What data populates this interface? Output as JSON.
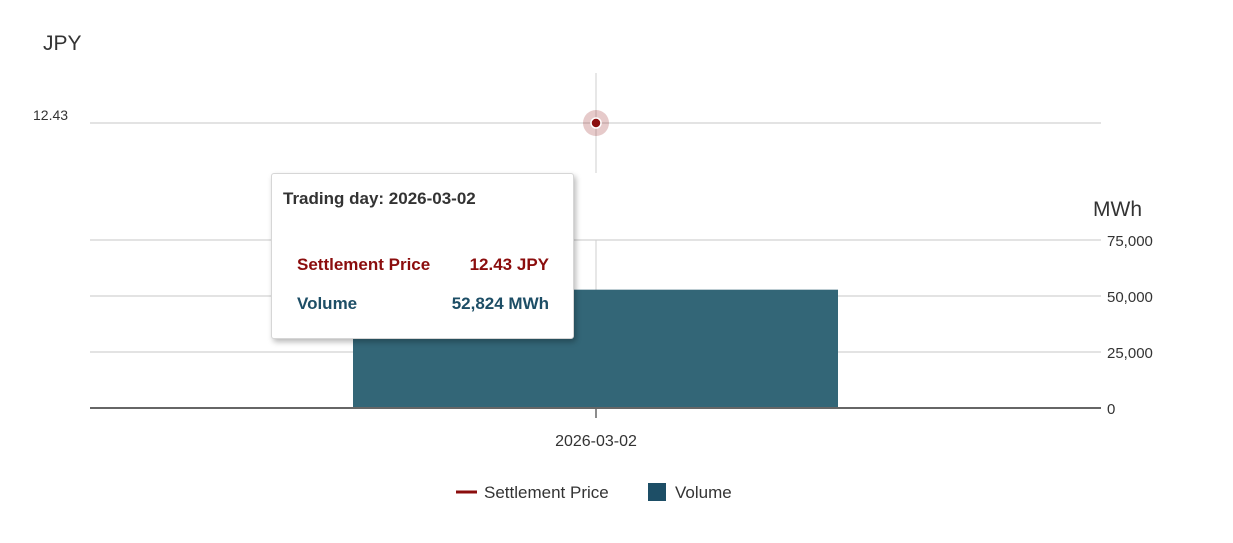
{
  "chart_data": {
    "type": "bar",
    "categories": [
      "2026-03-02"
    ],
    "series": [
      {
        "name": "Settlement Price",
        "type": "line",
        "axis": "left",
        "values": [
          12.43
        ],
        "color": "#8b0d0d"
      },
      {
        "name": "Volume",
        "type": "bar",
        "axis": "right",
        "values": [
          52824
        ],
        "color": "#336677"
      }
    ],
    "left_axis": {
      "label": "JPY",
      "ticks": [
        "12.43"
      ]
    },
    "right_axis": {
      "label": "MWh",
      "ticks": [
        "0",
        "25,000",
        "50,000",
        "75,000"
      ],
      "ylim": [
        0,
        75000
      ]
    },
    "grid": true,
    "legend_position": "bottom-center",
    "legend": [
      {
        "label": "Settlement Price",
        "marker": "line",
        "color": "#8b0d0d"
      },
      {
        "label": "Volume",
        "marker": "square",
        "color": "#1d4e66"
      }
    ],
    "tooltip": {
      "title": "Trading day: 2026-03-02",
      "rows": [
        {
          "label": "Settlement Price",
          "value": "12.43 JPY",
          "color": "#8b0d0d"
        },
        {
          "label": "Volume",
          "value": "52,824 MWh",
          "color": "#1d4e66"
        }
      ]
    }
  }
}
